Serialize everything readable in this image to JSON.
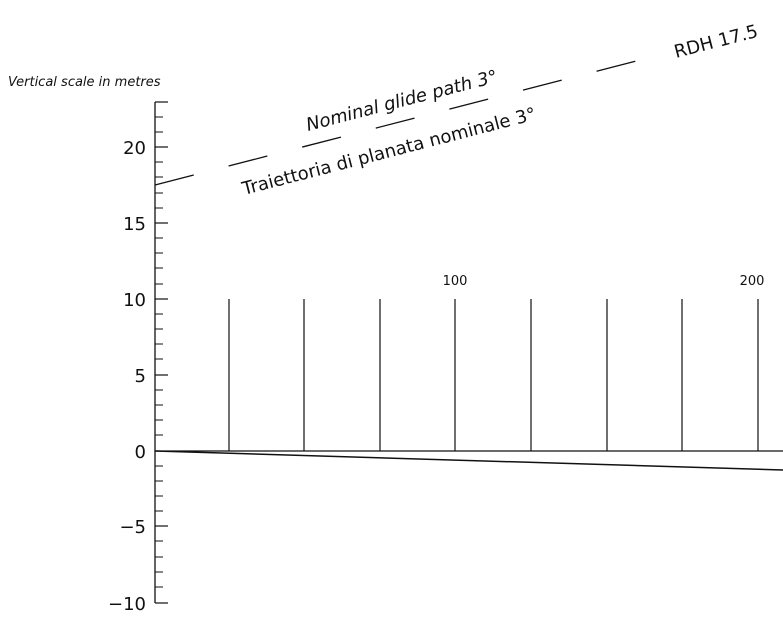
{
  "axis": {
    "caption": "Vertical scale in metres",
    "ticks": [
      20,
      15,
      10,
      5,
      0,
      -5,
      -10
    ],
    "tick_labels": [
      "20",
      "15",
      "10",
      "5",
      "0",
      "−5",
      "−10"
    ]
  },
  "glide_path": {
    "label_en": "Nominal glide path 3°",
    "label_it": "Traiettoria di planata nominale 3°",
    "rdh_label": "RDH 17.5",
    "rdh_value": 17.5,
    "angle_deg": 3
  },
  "distance_scale": {
    "labels": [
      "100",
      "200"
    ],
    "label_values": [
      100,
      200
    ],
    "marker_height": 10,
    "marker_count": 8
  }
}
